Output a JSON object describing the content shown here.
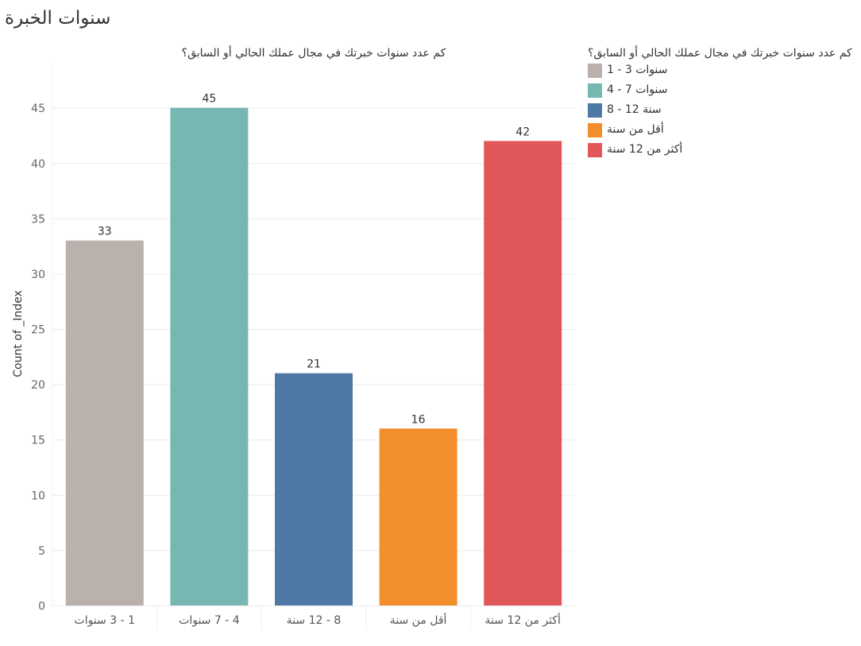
{
  "sheet": {
    "title": "سنوات الخبرة"
  },
  "chart_data": {
    "type": "bar",
    "header": "كم عدد سنوات خبرتك في مجال عملك الحالي أو السابق؟",
    "legend_title": "كم عدد سنوات خبرتك في مجال عملك الحالي أو السابق؟",
    "legend_position": "right",
    "categories": [
      "1 - 3 سنوات",
      "4 - 7 سنوات",
      "8 - 12 سنة",
      "أقل من سنة",
      "أكثر من 12 سنة"
    ],
    "values": [
      33,
      45,
      21,
      16,
      42
    ],
    "colors": [
      "#bab0ac",
      "#76b7b2",
      "#4e79a7",
      "#f28e2b",
      "#e15759"
    ],
    "ylabel": "Count of _Index",
    "ylim": [
      0,
      49
    ],
    "yticks": [
      0,
      5,
      10,
      15,
      20,
      25,
      30,
      35,
      40,
      45
    ],
    "grid": true,
    "data_labels": true
  }
}
